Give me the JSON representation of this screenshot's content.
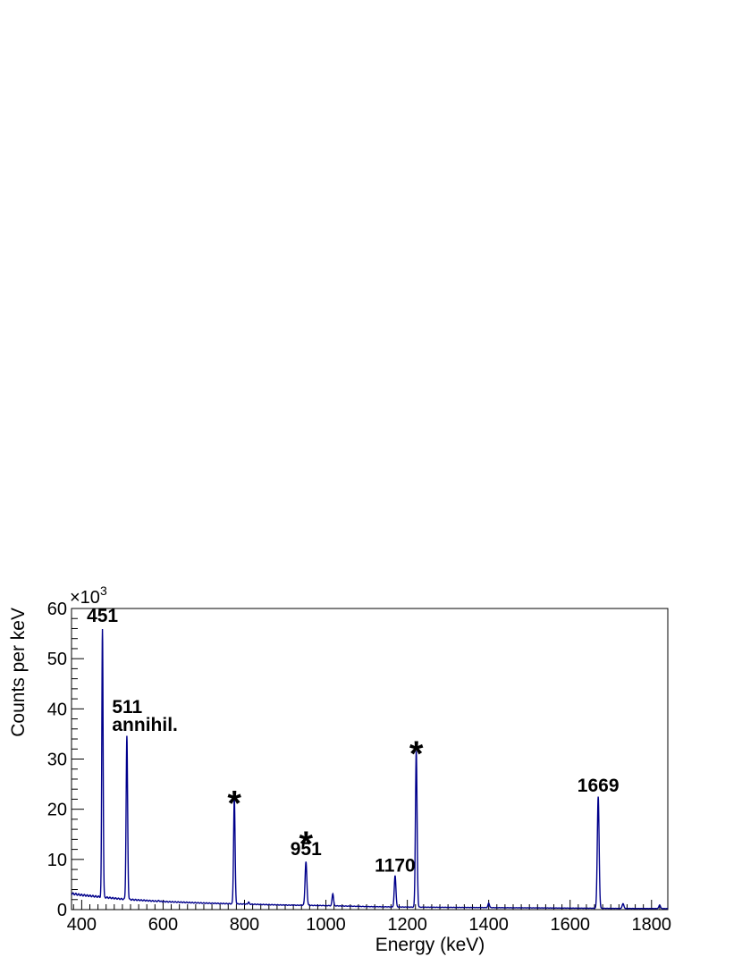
{
  "chart_data": {
    "type": "line",
    "title": "",
    "xlabel": "Energy (keV)",
    "ylabel": "Counts per keV",
    "y_multiplier_label": "×10",
    "y_multiplier_exponent": "3",
    "xlim": [
      375,
      1840
    ],
    "ylim": [
      0,
      60
    ],
    "x_ticks": [
      400,
      600,
      800,
      1000,
      1200,
      1400,
      1600,
      1800
    ],
    "x_tick_labels": [
      "400",
      "600",
      "800",
      "1000",
      "1200",
      "1400",
      "1600",
      "1800"
    ],
    "y_ticks": [
      0,
      10,
      20,
      30,
      40,
      50,
      60
    ],
    "y_tick_labels": [
      "0",
      "10",
      "20",
      "30",
      "40",
      "50",
      "60"
    ],
    "grid": false,
    "series": [
      {
        "color": "#00008b",
        "baseline": [
          [
            375,
            3.2
          ],
          [
            400,
            2.9
          ],
          [
            450,
            2.5
          ],
          [
            500,
            2.1
          ],
          [
            600,
            1.6
          ],
          [
            700,
            1.3
          ],
          [
            800,
            1.1
          ],
          [
            900,
            0.9
          ],
          [
            1000,
            0.8
          ],
          [
            1100,
            0.6
          ],
          [
            1200,
            0.5
          ],
          [
            1300,
            0.45
          ],
          [
            1400,
            0.4
          ],
          [
            1500,
            0.35
          ],
          [
            1600,
            0.3
          ],
          [
            1700,
            0.25
          ],
          [
            1840,
            0.2
          ]
        ],
        "peaks": [
          {
            "x": 451,
            "y": 56,
            "width": 1.6
          },
          {
            "x": 511,
            "y": 34.5,
            "width": 1.8
          },
          {
            "x": 775,
            "y": 22.3,
            "width": 1.8
          },
          {
            "x": 951,
            "y": 9.5,
            "width": 2.2
          },
          {
            "x": 1017,
            "y": 3.2,
            "width": 1.8
          },
          {
            "x": 1170,
            "y": 6.8,
            "width": 2.0
          },
          {
            "x": 1222,
            "y": 31.6,
            "width": 2.0
          },
          {
            "x": 1669,
            "y": 22.5,
            "width": 2.2
          },
          {
            "x": 1730,
            "y": 1.2,
            "width": 2.0
          },
          {
            "x": 1820,
            "y": 0.9,
            "width": 2.0
          },
          {
            "x": 590,
            "y": 1.8,
            "width": 1.5
          },
          {
            "x": 810,
            "y": 1.5,
            "width": 1.5
          },
          {
            "x": 1400,
            "y": 1.3,
            "width": 1.8
          }
        ]
      }
    ],
    "annotations": [
      {
        "text": "451",
        "x": 451,
        "y": 57.3,
        "kind": "label"
      },
      {
        "text": "511",
        "x": 512,
        "y": 39.2,
        "kind": "label"
      },
      {
        "text": "annihil.",
        "x": 512,
        "y": 35.6,
        "kind": "label"
      },
      {
        "text": "*",
        "x": 775,
        "y": 22.7,
        "kind": "star"
      },
      {
        "text": "*",
        "x": 951,
        "y": 14.6,
        "kind": "star"
      },
      {
        "text": "951",
        "x": 951,
        "y": 10.9,
        "kind": "label"
      },
      {
        "text": "1170",
        "x": 1170,
        "y": 7.6,
        "kind": "label"
      },
      {
        "text": "*",
        "x": 1222,
        "y": 32.6,
        "kind": "star"
      },
      {
        "text": "1669",
        "x": 1669,
        "y": 23.5,
        "kind": "label"
      }
    ]
  }
}
